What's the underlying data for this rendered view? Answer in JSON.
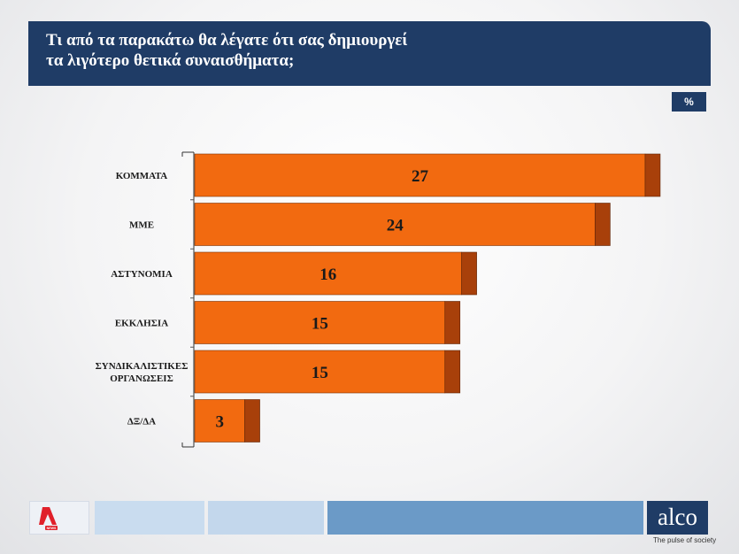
{
  "title": {
    "line1": "Τι από τα παρακάτω θα λέγατε ότι σας δημιουργεί",
    "line2": "τα λιγότερο θετικά συναισθήματα;"
  },
  "unit_badge": "%",
  "logos": {
    "left_badge": "NEWS",
    "brand": "alco",
    "tagline": "The pulse of society"
  },
  "colors": {
    "bar_front": "#f26a10",
    "bar_side": "#a8400a",
    "header": "#1f3c66"
  },
  "chart_data": {
    "type": "bar",
    "orientation": "horizontal",
    "title": "Τι από τα παρακάτω θα λέγατε ότι σας δημιουργεί τα λιγότερο θετικά συναισθήματα;",
    "unit": "%",
    "categories": [
      [
        "ΚΟΜΜΑΤΑ"
      ],
      [
        "ΜΜΕ"
      ],
      [
        "ΑΣΤΥΝΟΜΙΑ"
      ],
      [
        "ΕΚΚΛΗΣΙΑ"
      ],
      [
        "ΣΥΝΔΙΚΑΛΙΣΤΙΚΕΣ",
        "ΟΡΓΑΝΩΣΕΙΣ"
      ],
      [
        "ΔΞ/ΔΑ"
      ]
    ],
    "values": [
      27,
      24,
      16,
      15,
      15,
      3
    ],
    "xlim": [
      0,
      27
    ],
    "xlabel": "",
    "ylabel": "",
    "grid": false,
    "legend": "none"
  }
}
